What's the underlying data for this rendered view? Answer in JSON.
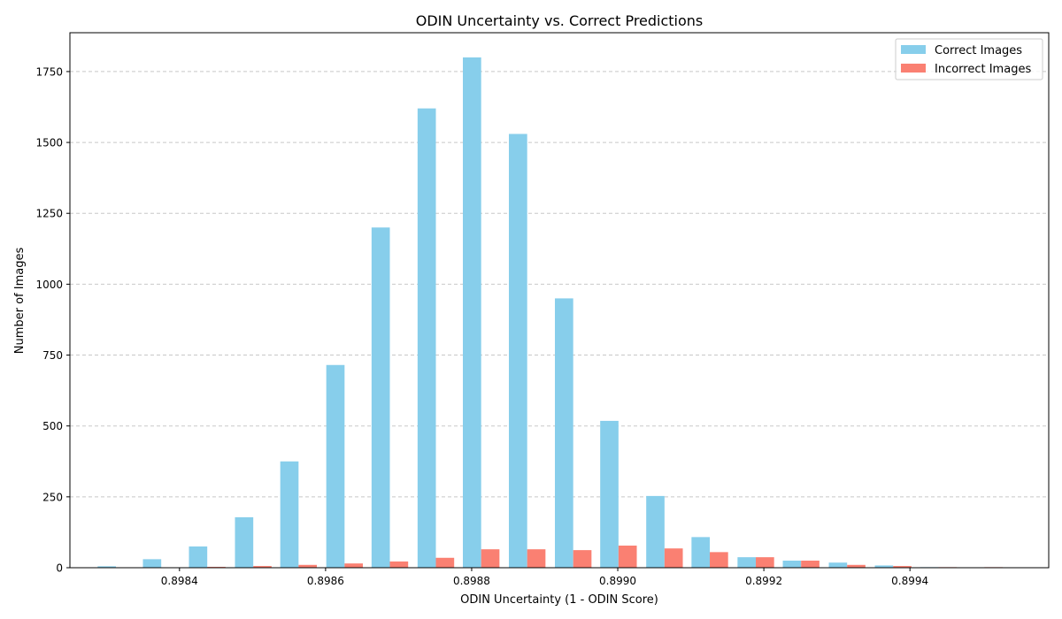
{
  "chart_data": {
    "type": "bar",
    "title": "ODIN Uncertainty vs. Correct Predictions",
    "xlabel": "ODIN Uncertainty (1 - ODIN Score)",
    "ylabel": "Number of Images",
    "xlim": [
      0.89825,
      0.89959
    ],
    "ylim": [
      0,
      1887
    ],
    "x_ticks": [
      0.8984,
      0.8986,
      0.8988,
      0.899,
      0.8992,
      0.8994
    ],
    "x_tick_labels": [
      "0.8984",
      "0.8986",
      "0.8988",
      "0.8990",
      "0.8992",
      "0.8994"
    ],
    "y_ticks": [
      0,
      250,
      500,
      750,
      1000,
      1250,
      1500,
      1750
    ],
    "y_tick_labels": [
      "0",
      "250",
      "500",
      "750",
      "1000",
      "1250",
      "1500",
      "1750"
    ],
    "grid": "y-dashed",
    "legend": "top-right",
    "bin_width": 6.26e-05,
    "x": [
      0.898313,
      0.898375,
      0.898438,
      0.898501,
      0.898563,
      0.898626,
      0.898688,
      0.898751,
      0.898813,
      0.898876,
      0.898939,
      0.899001,
      0.899064,
      0.899126,
      0.899189,
      0.899251,
      0.899314,
      0.899377,
      0.899439,
      0.899502
    ],
    "series": [
      {
        "name": "Correct Images",
        "color": "#87CEEB",
        "values": [
          5,
          30,
          75,
          178,
          375,
          715,
          1200,
          1620,
          1800,
          1530,
          950,
          518,
          253,
          108,
          37,
          25,
          18,
          8,
          2,
          0
        ]
      },
      {
        "name": "Incorrect Images",
        "color": "#FA8072",
        "values": [
          1,
          0,
          3,
          6,
          10,
          15,
          22,
          35,
          65,
          65,
          62,
          78,
          68,
          55,
          37,
          25,
          10,
          6,
          2,
          2
        ]
      }
    ]
  }
}
